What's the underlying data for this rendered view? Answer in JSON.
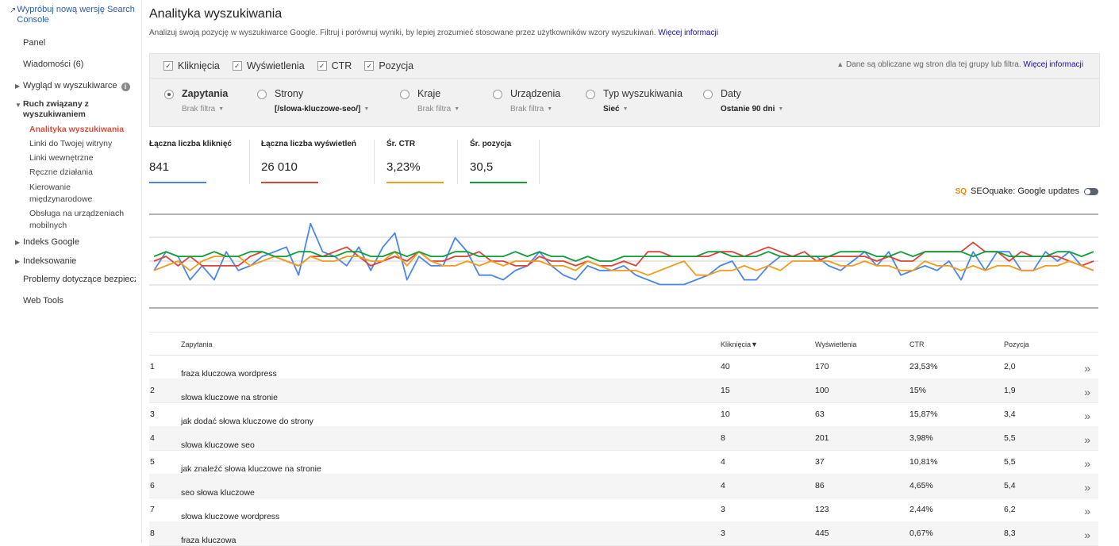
{
  "sidebar": {
    "try_new": "Wypróbuj nową wersję Search Console",
    "panel": "Panel",
    "messages": "Wiadomości (6)",
    "appearance": "Wygląd w wyszukiwarce",
    "traffic": "Ruch związany z wyszukiwaniem",
    "subitems": [
      "Analityka wyszukiwania",
      "Linki do Twojej witryny",
      "Linki wewnętrzne",
      "Ręczne działania",
      "Kierowanie międzynarodowe",
      "Obsługa na urządzeniach mobilnych"
    ],
    "index": "Indeks Google",
    "crawl": "Indeksowanie",
    "security": "Problemy dotyczące bezpiecze",
    "webtools": "Web Tools"
  },
  "header": {
    "title": "Analityka wyszukiwania",
    "subtitle": "Analizuj swoją pozycję w wyszukiwarce Google. Filtruj i porównuj wyniki, by lepiej zrozumieć stosowane przez użytkowników wzory wyszukiwań.",
    "more_link": "Więcej informacji"
  },
  "filters": {
    "metrics": [
      "Kliknięcia",
      "Wyświetlenia",
      "CTR",
      "Pozycja"
    ],
    "notice": "Dane są obliczane wg stron dla tej grupy lub filtra.",
    "notice_link": "Więcej informacji",
    "groups": [
      {
        "label": "Zapytania",
        "sub": "Brak filtra"
      },
      {
        "label": "Strony",
        "sub": "[/slowa-kluczowe-seo/]"
      },
      {
        "label": "Kraje",
        "sub": "Brak filtra"
      },
      {
        "label": "Urządzenia",
        "sub": "Brak filtra"
      },
      {
        "label": "Typ wyszukiwania",
        "sub": "Sieć"
      },
      {
        "label": "Daty",
        "sub": "Ostanie 90 dni"
      }
    ]
  },
  "cards": [
    {
      "label": "Łączna liczba kliknięć",
      "value": "841",
      "color": "#4a86e8"
    },
    {
      "label": "Łączna liczba wyświetleń",
      "value": "26 010",
      "color": "#db4437"
    },
    {
      "label": "Śr. CTR",
      "value": "3,23%",
      "color": "#f29b1d"
    },
    {
      "label": "Śr. pozycja",
      "value": "30,5",
      "color": "#109d3a"
    }
  ],
  "seoquake": {
    "logo": "SQ",
    "label": "SEOquake: Google updates"
  },
  "chart_data": {
    "type": "line",
    "series": [
      {
        "name": "Kliknięcia",
        "color": "#4a86e8",
        "values": [
          8,
          12,
          11,
          6,
          9,
          6,
          12,
          8,
          9,
          11,
          12,
          13,
          7,
          18,
          12,
          11,
          9,
          13,
          8,
          13,
          16,
          6,
          11,
          9,
          9,
          15,
          12,
          7,
          7,
          6,
          8,
          9,
          12,
          9,
          7,
          6,
          9,
          8,
          8,
          9,
          7,
          6,
          5,
          5,
          5,
          6,
          7,
          9,
          10,
          6,
          6,
          9,
          11,
          11,
          11,
          11,
          9,
          8,
          10,
          12,
          9,
          12,
          7,
          8,
          9,
          8,
          10,
          6,
          12,
          8,
          12,
          12,
          8,
          8,
          12,
          10,
          12,
          9,
          8
        ]
      },
      {
        "name": "Wyświetlenia",
        "color": "#db4437",
        "values": [
          10,
          11,
          9,
          11,
          9,
          9,
          9,
          9,
          11,
          12,
          11,
          10,
          9,
          11,
          11,
          12,
          13,
          11,
          9,
          10,
          11,
          10,
          12,
          10,
          10,
          11,
          11,
          12,
          10,
          10,
          9,
          9,
          11,
          10,
          10,
          9,
          10,
          9,
          9,
          10,
          9,
          12,
          12,
          11,
          11,
          11,
          11,
          12,
          12,
          11,
          12,
          13,
          12,
          11,
          12,
          10,
          11,
          11,
          11,
          11,
          10,
          11,
          10,
          10,
          12,
          12,
          12,
          12,
          14,
          12,
          12,
          10,
          12,
          11,
          11,
          11,
          10,
          9,
          10
        ]
      },
      {
        "name": "CTR",
        "color": "#f29b1d",
        "values": [
          8,
          9,
          10,
          8,
          10,
          11,
          11,
          11,
          9,
          10,
          11,
          10,
          9,
          11,
          10,
          10,
          11,
          11,
          10,
          10,
          12,
          9,
          12,
          10,
          9,
          9,
          10,
          9,
          10,
          9,
          10,
          10,
          10,
          9,
          9,
          8,
          10,
          9,
          8,
          8,
          8,
          7,
          8,
          9,
          10,
          7,
          7,
          8,
          8,
          9,
          8,
          9,
          8,
          10,
          10,
          10,
          10,
          9,
          9,
          10,
          9,
          9,
          8,
          8,
          10,
          9,
          9,
          8,
          9,
          8,
          9,
          9,
          8,
          8,
          9,
          9,
          10,
          9,
          8
        ]
      },
      {
        "name": "Pozycja",
        "color": "#109d3a",
        "values": [
          11,
          12,
          11,
          11,
          11,
          12,
          11,
          11,
          12,
          12,
          11,
          11,
          12,
          12,
          11,
          11,
          12,
          12,
          11,
          11,
          12,
          11,
          12,
          11,
          11,
          12,
          12,
          11,
          11,
          11,
          12,
          11,
          12,
          11,
          11,
          10,
          11,
          10,
          10,
          11,
          11,
          11,
          11,
          11,
          11,
          11,
          12,
          12,
          11,
          11,
          11,
          12,
          11,
          11,
          11,
          11,
          11,
          12,
          12,
          12,
          11,
          11,
          12,
          11,
          12,
          12,
          12,
          12,
          11,
          12,
          12,
          11,
          11,
          11,
          11,
          12,
          12,
          11,
          12
        ]
      }
    ]
  },
  "table": {
    "headers": [
      "Zapytania",
      "Kliknięcia▼",
      "Wyświetlenia",
      "CTR",
      "Pozycja"
    ],
    "rows": [
      {
        "n": "1",
        "q": "fraza kluczowa wordpress",
        "clicks": "40",
        "impr": "170",
        "ctr": "23,53%",
        "pos": "2,0"
      },
      {
        "n": "2",
        "q": "słowa kluczowe na stronie",
        "clicks": "15",
        "impr": "100",
        "ctr": "15%",
        "pos": "1,9"
      },
      {
        "n": "3",
        "q": "jak dodać słowa kluczowe do strony",
        "clicks": "10",
        "impr": "63",
        "ctr": "15,87%",
        "pos": "3,4"
      },
      {
        "n": "4",
        "q": "słowa kluczowe seo",
        "clicks": "8",
        "impr": "201",
        "ctr": "3,98%",
        "pos": "5,5"
      },
      {
        "n": "5",
        "q": "jak znaleźć słowa kluczowe na stronie",
        "clicks": "4",
        "impr": "37",
        "ctr": "10,81%",
        "pos": "5,5"
      },
      {
        "n": "6",
        "q": "seo słowa kluczowe",
        "clicks": "4",
        "impr": "86",
        "ctr": "4,65%",
        "pos": "5,4"
      },
      {
        "n": "7",
        "q": "słowa kluczowe wordpress",
        "clicks": "3",
        "impr": "123",
        "ctr": "2,44%",
        "pos": "6,2"
      },
      {
        "n": "8",
        "q": "fraza kluczowa",
        "clicks": "3",
        "impr": "445",
        "ctr": "0,67%",
        "pos": "8,3"
      }
    ]
  }
}
